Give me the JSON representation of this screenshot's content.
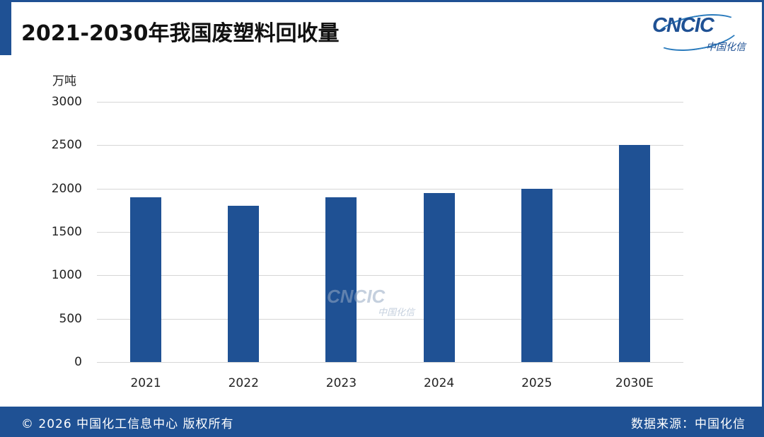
{
  "header": {
    "title": "2021-2030年我国废塑料回收量",
    "logo_text": "CNCIC",
    "logo_subtext": "中国化信"
  },
  "watermark": {
    "text": "CNCIC",
    "subtext": "中国化信"
  },
  "footer": {
    "copyright": "© 2026 中国化工信息中心  版权所有",
    "source": "数据来源：中国化信"
  },
  "colors": {
    "bar": "#1f5194",
    "brand": "#1f5194",
    "grid": "#d6d6d6"
  },
  "chart_data": {
    "type": "bar",
    "title": "2021-2030年我国废塑料回收量",
    "xlabel": "",
    "ylabel": "万吨",
    "categories": [
      "2021",
      "2022",
      "2023",
      "2024",
      "2025",
      "2030E"
    ],
    "values": [
      1900,
      1800,
      1900,
      1950,
      2000,
      2500
    ],
    "ylim": [
      0,
      3000
    ],
    "yticks": [
      0,
      500,
      1000,
      1500,
      2000,
      2500,
      3000
    ],
    "grid": true,
    "legend": "none"
  }
}
